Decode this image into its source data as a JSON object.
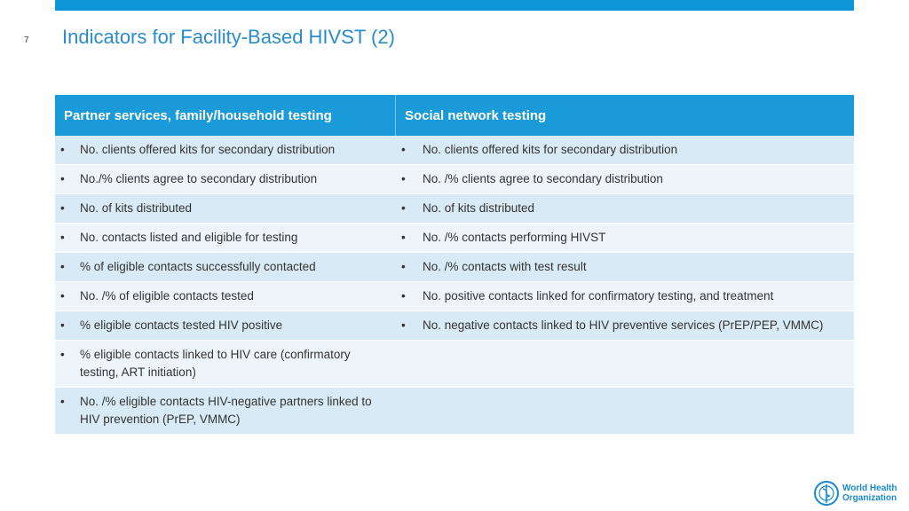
{
  "slide_number": "7",
  "title": "Indicators for Facility-Based HIVST (2)",
  "table": {
    "headers": [
      "Partner services, family/household testing",
      "Social network testing"
    ],
    "rows": [
      [
        "No. clients offered kits for secondary distribution",
        "No. clients offered kits for secondary distribution"
      ],
      [
        "No./% clients agree to secondary distribution",
        "No. /%  clients agree to secondary distribution"
      ],
      [
        "No. of kits distributed",
        "No. of kits distributed"
      ],
      [
        "No. contacts listed and eligible for  testing",
        "No. /%  contacts performing HIVST"
      ],
      [
        "% of eligible contacts successfully contacted",
        "No. /% contacts with test result"
      ],
      [
        "No. /% of eligible contacts tested",
        "No. positive contacts linked for confirmatory testing, and treatment"
      ],
      [
        "% eligible contacts tested HIV positive",
        "No. negative contacts linked to HIV preventive services (PrEP/PEP, VMMC)"
      ],
      [
        "% eligible contacts linked to HIV care (confirmatory testing, ART initiation)"
      ],
      [
        "No. /% eligible contacts HIV-negative partners linked to HIV prevention (PrEP, VMMC)"
      ]
    ]
  },
  "logo": [
    "World Health",
    "Organization"
  ]
}
